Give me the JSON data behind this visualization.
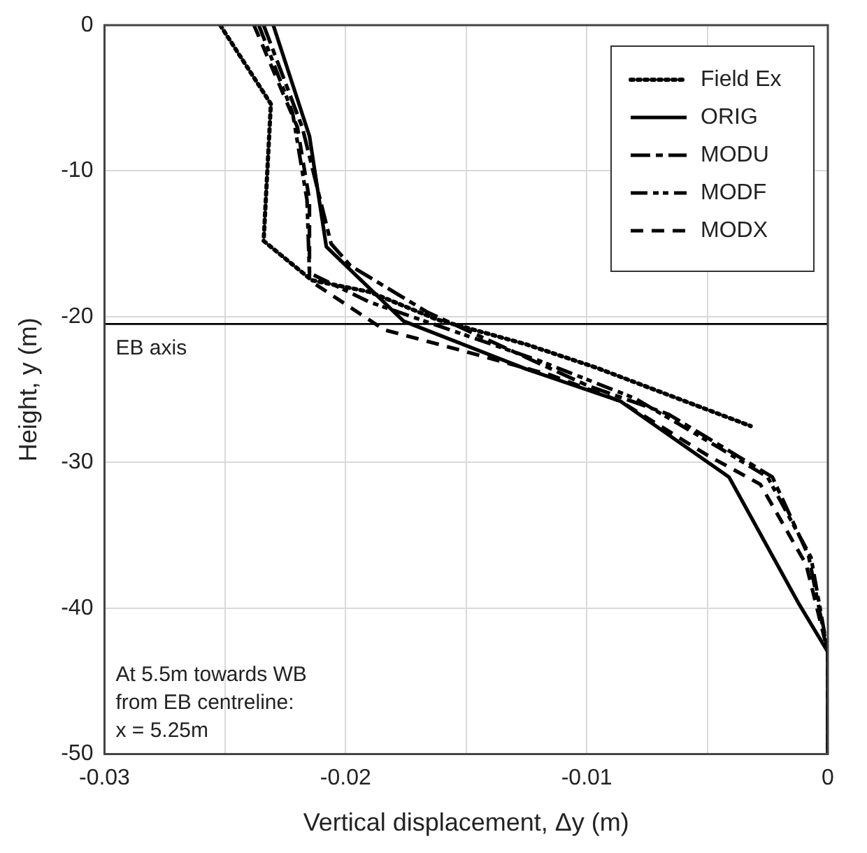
{
  "chart_data": {
    "type": "line",
    "xlabel": "Vertical displacement, Δy (m)",
    "ylabel": "Height, y (m)",
    "xlim": [
      -0.03,
      0
    ],
    "xticks": [
      -0.03,
      {
        "value": -0.025,
        "label": null
      },
      -0.02,
      {
        "value": -0.015,
        "label": null
      },
      -0.01,
      {
        "value": -0.005,
        "label": null
      },
      0
    ],
    "ylim": [
      -50,
      0
    ],
    "yticks": [
      -50,
      -40,
      -30,
      -20,
      -10,
      0
    ],
    "grid": true,
    "legend": "top right",
    "marker": "none",
    "series": [
      {
        "name": "Field Ex",
        "color": "#000000",
        "line_style": "dotted",
        "x": [
          -0.0252,
          -0.0231,
          -0.0234,
          -0.0214,
          -0.019,
          -0.0162,
          -0.0125,
          -0.0096,
          -0.0032
        ],
        "values": [
          0,
          -5.4,
          -14.8,
          -17.5,
          -18.3,
          -20.2,
          -21.9,
          -23.5,
          -27.5
        ]
      },
      {
        "name": "ORIG",
        "color": "#000000",
        "line_style": "solid",
        "x": [
          -0.023,
          -0.0215,
          -0.0208,
          -0.0176,
          -0.0125,
          -0.0086,
          -0.0041,
          -0.0012,
          0,
          0
        ],
        "values": [
          0,
          -7.6,
          -15.2,
          -20.3,
          -23.6,
          -25.8,
          -31,
          -39.7,
          -43,
          -50
        ]
      },
      {
        "name": "MODU",
        "color": "#000000",
        "line_style": "dashed",
        "x": [
          -0.0234,
          -0.0218,
          -0.0206,
          -0.0198,
          -0.0166,
          -0.01,
          -0.0066,
          -0.0023,
          -0.0008,
          0,
          0
        ],
        "values": [
          0,
          -7,
          -15,
          -16.5,
          -19.7,
          -24.7,
          -26.7,
          -31,
          -36.4,
          -43,
          -50
        ]
      },
      {
        "name": "MODF",
        "color": "#000000",
        "line_style": "dashed",
        "x": [
          -0.0236,
          -0.0222,
          -0.0216,
          -0.0215,
          -0.019,
          -0.0155,
          -0.012,
          -0.008,
          -0.0045,
          -0.0025,
          -0.0007,
          0,
          0
        ],
        "values": [
          0,
          -6,
          -12,
          -17,
          -19,
          -21,
          -23,
          -25.6,
          -29,
          -31,
          -36.5,
          -43,
          -50
        ]
      },
      {
        "name": "MODX",
        "color": "#000000",
        "line_style": "dashed",
        "x": [
          -0.0238,
          -0.022,
          -0.0215,
          -0.0215,
          -0.0184,
          -0.015,
          -0.0115,
          -0.0086,
          -0.005,
          -0.0028,
          -0.0009,
          0,
          0
        ],
        "values": [
          0,
          -7,
          -12,
          -17.5,
          -20.9,
          -22.4,
          -24,
          -25.8,
          -29.5,
          -31.5,
          -37,
          -43,
          -50
        ]
      }
    ],
    "ref_lines": [
      {
        "axis": "y",
        "value": -20.5,
        "label": "EB axis",
        "color": "#000000"
      }
    ],
    "annotations": [
      "At 5.5m towards WB\nfrom EB centreline:\nx = 5.25m"
    ]
  }
}
